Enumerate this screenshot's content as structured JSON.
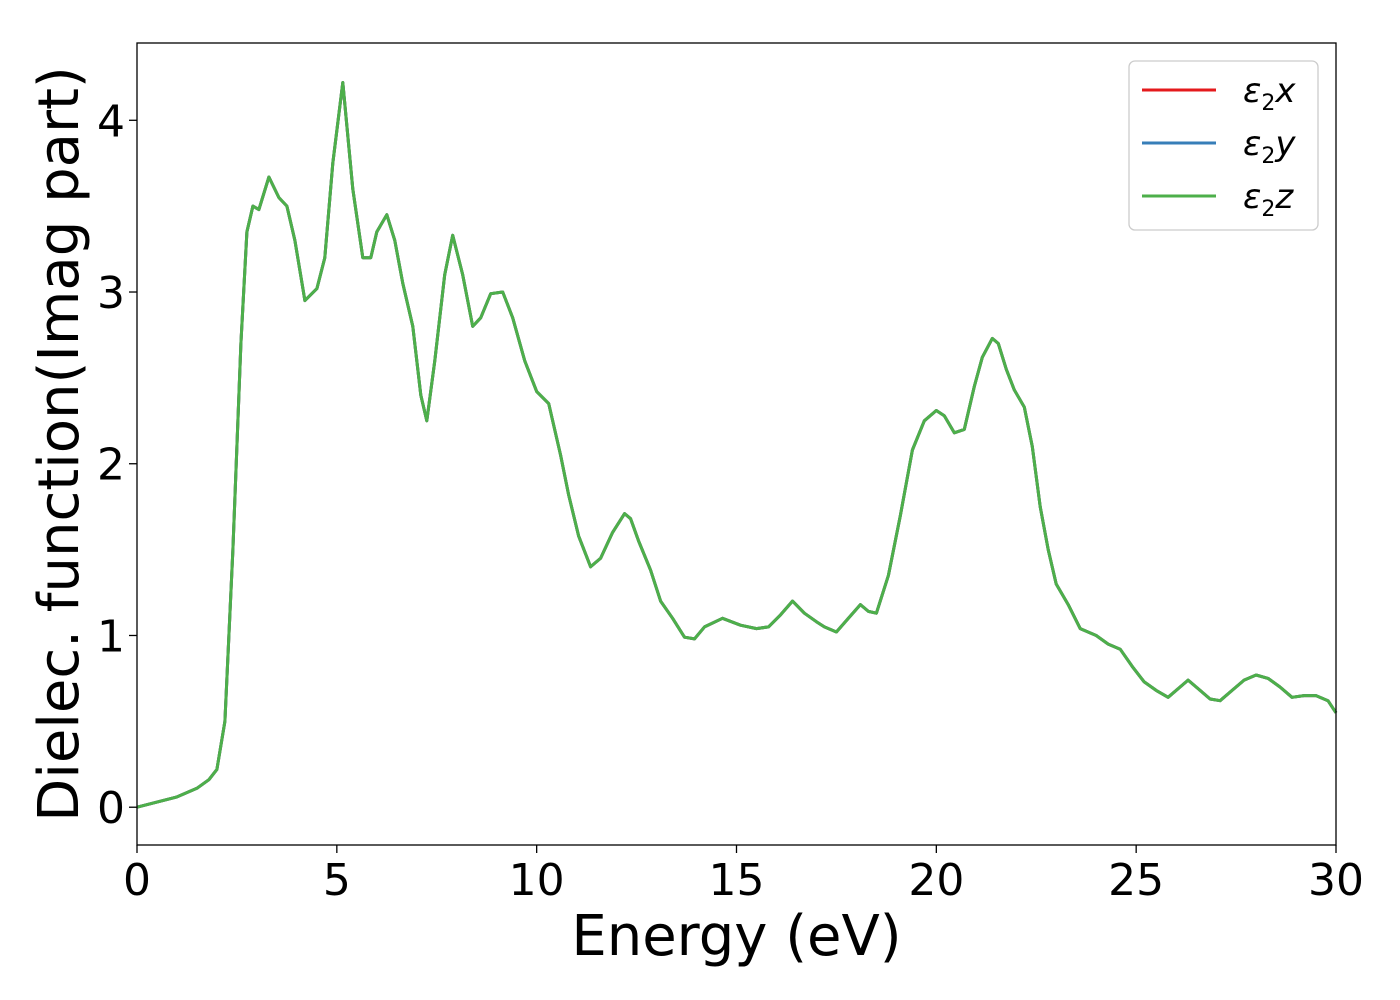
{
  "chart_data": {
    "type": "line",
    "title": "",
    "xlabel": "Energy (eV)",
    "ylabel": "Dielec. function(Imag part)",
    "xlim": [
      0,
      30
    ],
    "ylim": [
      -0.22,
      4.45
    ],
    "x_ticks": [
      0,
      5,
      10,
      15,
      20,
      25,
      30
    ],
    "y_ticks": [
      0,
      1,
      2,
      3,
      4
    ],
    "x_tick_labels": [
      "0",
      "5",
      "10",
      "15",
      "20",
      "25",
      "30"
    ],
    "y_tick_labels": [
      "0",
      "1",
      "2",
      "3",
      "4"
    ],
    "grid": false,
    "legend_position": "top-right",
    "legend": [
      {
        "name": "ε₂x",
        "base": "ε",
        "sub": "2",
        "suffix": "x",
        "color": "#e41a1c"
      },
      {
        "name": "ε₂y",
        "base": "ε",
        "sub": "2",
        "suffix": "y",
        "color": "#377eb8"
      },
      {
        "name": "ε₂z",
        "base": "ε",
        "sub": "2",
        "suffix": "z",
        "color": "#4daf4a"
      }
    ],
    "series_note": "All three series overlap exactly; the last drawn (ε₂z) is visible on top.",
    "x": [
      0,
      0.5,
      1.0,
      1.5,
      1.8,
      2.0,
      2.2,
      2.4,
      2.6,
      2.75,
      2.9,
      3.05,
      3.3,
      3.55,
      3.75,
      3.95,
      4.2,
      4.5,
      4.7,
      4.9,
      5.15,
      5.4,
      5.65,
      5.85,
      6.0,
      6.25,
      6.45,
      6.65,
      6.9,
      7.1,
      7.25,
      7.45,
      7.7,
      7.9,
      8.15,
      8.4,
      8.6,
      8.85,
      9.15,
      9.4,
      9.7,
      10.0,
      10.3,
      10.6,
      10.8,
      11.05,
      11.35,
      11.6,
      11.9,
      12.2,
      12.35,
      12.55,
      12.85,
      13.1,
      13.4,
      13.7,
      13.95,
      14.2,
      14.65,
      15.1,
      15.5,
      15.8,
      16.1,
      16.4,
      16.7,
      17.0,
      17.2,
      17.5,
      17.8,
      18.1,
      18.3,
      18.5,
      18.8,
      19.1,
      19.4,
      19.7,
      20.0,
      20.2,
      20.45,
      20.7,
      20.95,
      21.15,
      21.4,
      21.55,
      21.75,
      21.95,
      22.2,
      22.4,
      22.6,
      22.8,
      23.0,
      23.3,
      23.6,
      24.0,
      24.3,
      24.6,
      24.9,
      25.2,
      25.5,
      25.8,
      26.1,
      26.3,
      26.6,
      26.85,
      27.1,
      27.4,
      27.7,
      28.0,
      28.3,
      28.6,
      28.9,
      29.2,
      29.5,
      29.8,
      30.0
    ],
    "y": [
      0.0,
      0.03,
      0.06,
      0.11,
      0.16,
      0.22,
      0.5,
      1.5,
      2.7,
      3.35,
      3.5,
      3.48,
      3.67,
      3.55,
      3.5,
      3.3,
      2.95,
      3.02,
      3.2,
      3.75,
      4.22,
      3.6,
      3.2,
      3.2,
      3.35,
      3.45,
      3.3,
      3.05,
      2.8,
      2.4,
      2.25,
      2.6,
      3.1,
      3.33,
      3.1,
      2.8,
      2.85,
      2.99,
      3.0,
      2.85,
      2.6,
      2.42,
      2.35,
      2.05,
      1.82,
      1.58,
      1.4,
      1.45,
      1.6,
      1.71,
      1.68,
      1.55,
      1.38,
      1.2,
      1.1,
      0.99,
      0.98,
      1.05,
      1.1,
      1.06,
      1.04,
      1.05,
      1.12,
      1.2,
      1.13,
      1.08,
      1.05,
      1.02,
      1.1,
      1.18,
      1.14,
      1.13,
      1.35,
      1.7,
      2.08,
      2.25,
      2.31,
      2.28,
      2.18,
      2.2,
      2.45,
      2.62,
      2.73,
      2.7,
      2.55,
      2.43,
      2.33,
      2.1,
      1.75,
      1.5,
      1.3,
      1.18,
      1.04,
      1.0,
      0.95,
      0.92,
      0.82,
      0.73,
      0.68,
      0.64,
      0.7,
      0.74,
      0.68,
      0.63,
      0.62,
      0.68,
      0.74,
      0.77,
      0.75,
      0.7,
      0.64,
      0.65,
      0.65,
      0.62,
      0.55
    ]
  }
}
